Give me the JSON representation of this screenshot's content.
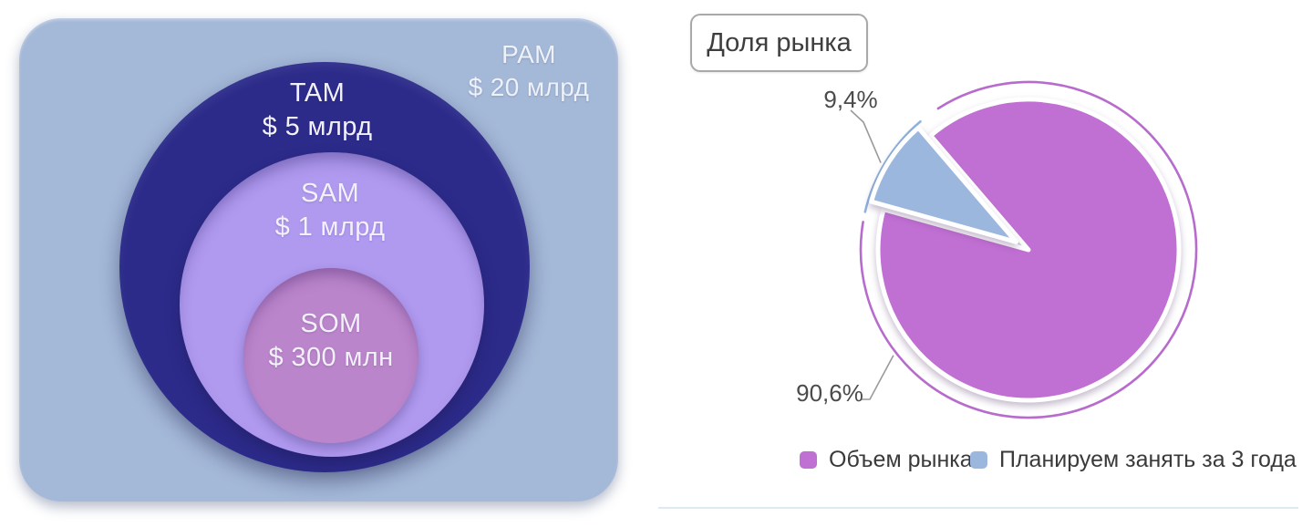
{
  "chart_data": [
    {
      "type": "venn",
      "variant": "nested-market-sizing",
      "title": "",
      "categories": [
        "PAM",
        "TAM",
        "SAM",
        "SOM"
      ],
      "value_labels": [
        "$ 20 млрд",
        "$ 5 млрд",
        "$ 1 млрд",
        "$ 300 млн"
      ],
      "values_musd": [
        20000,
        5000,
        1000,
        300
      ],
      "colors": [
        "#a4b8d8",
        "#2c2b8a",
        "#b09af0",
        "#bb85cb"
      ],
      "text_color": "#f2f0f8",
      "layout_hint": "PAM rounded square outermost, TAM > SAM > SOM circles nested toward bottom"
    },
    {
      "type": "pie",
      "title": "Доля рынка",
      "categories": [
        "Объем рынка",
        "Планируем занять за 3 года"
      ],
      "values": [
        90.6,
        9.4
      ],
      "percent_labels": [
        "90,6%",
        "9,4%"
      ],
      "colors": [
        "#c06fd2",
        "#9cb7de"
      ],
      "ring_colors": [
        "#b76ccd",
        "#8fb3de"
      ],
      "exploded_index": 1,
      "legend_position": "bottom",
      "layout_hint": "small slice exploded to upper-left, thin outer ring arcs, gray callout lines to percent labels"
    }
  ]
}
